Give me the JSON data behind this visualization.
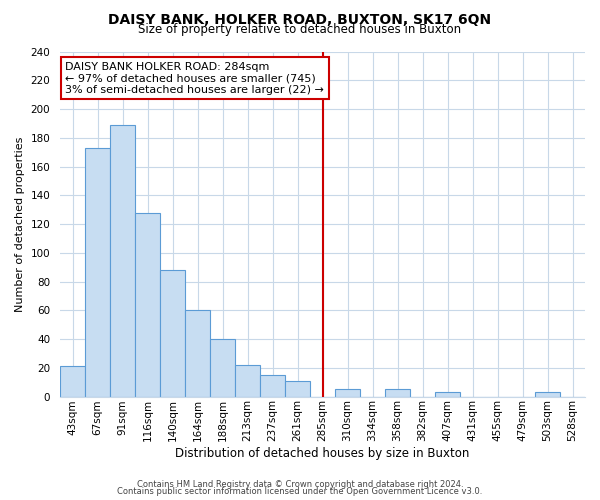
{
  "title": "DAISY BANK, HOLKER ROAD, BUXTON, SK17 6QN",
  "subtitle": "Size of property relative to detached houses in Buxton",
  "xlabel": "Distribution of detached houses by size in Buxton",
  "ylabel": "Number of detached properties",
  "bin_labels": [
    "43sqm",
    "67sqm",
    "91sqm",
    "116sqm",
    "140sqm",
    "164sqm",
    "188sqm",
    "213sqm",
    "237sqm",
    "261sqm",
    "285sqm",
    "310sqm",
    "334sqm",
    "358sqm",
    "382sqm",
    "407sqm",
    "431sqm",
    "455sqm",
    "479sqm",
    "503sqm",
    "528sqm"
  ],
  "bar_values": [
    21,
    173,
    189,
    128,
    88,
    60,
    40,
    22,
    15,
    11,
    0,
    5,
    0,
    5,
    0,
    3,
    0,
    0,
    0,
    3,
    0
  ],
  "bar_color": "#c7ddf2",
  "bar_edge_color": "#5b9bd5",
  "reference_line_index": 10,
  "reference_line_color": "#cc0000",
  "annotation_line1": "DAISY BANK HOLKER ROAD: 284sqm",
  "annotation_line2": "← 97% of detached houses are smaller (745)",
  "annotation_line3": "3% of semi-detached houses are larger (22) →",
  "annotation_box_color": "#ffffff",
  "annotation_box_edge_color": "#cc0000",
  "ylim": [
    0,
    240
  ],
  "yticks": [
    0,
    20,
    40,
    60,
    80,
    100,
    120,
    140,
    160,
    180,
    200,
    220,
    240
  ],
  "footer_line1": "Contains HM Land Registry data © Crown copyright and database right 2024.",
  "footer_line2": "Contains public sector information licensed under the Open Government Licence v3.0.",
  "background_color": "#ffffff",
  "grid_color": "#c8d8e8",
  "title_fontsize": 10,
  "subtitle_fontsize": 8.5,
  "ylabel_fontsize": 8,
  "xlabel_fontsize": 8.5,
  "tick_fontsize": 7.5,
  "annotation_fontsize": 8,
  "footer_fontsize": 6
}
